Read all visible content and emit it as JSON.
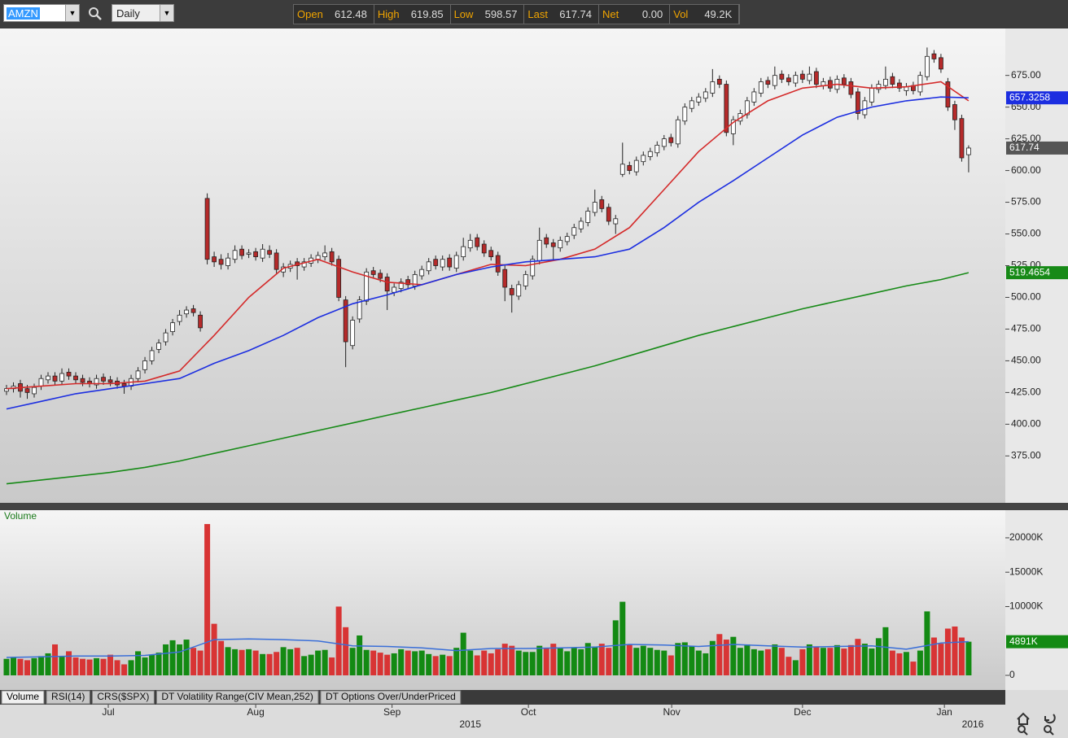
{
  "toolbar": {
    "symbol": "AMZN",
    "interval": "Daily",
    "quote": [
      {
        "label": "Open",
        "value": "612.48"
      },
      {
        "label": "High",
        "value": "619.85"
      },
      {
        "label": "Low",
        "value": "598.57"
      },
      {
        "label": "Last",
        "value": "617.74"
      },
      {
        "label": "Net",
        "value": "0.00"
      },
      {
        "label": "Vol",
        "value": "49.2K"
      }
    ]
  },
  "tabs": [
    "Volume",
    "RSI(14)",
    "CRS($SPX)",
    "DT Volatility Range(CIV Mean,252)",
    "DT Options Over/UnderPriced"
  ],
  "chart_data": [
    {
      "type": "candlestick",
      "up_color": "#ffffff",
      "down_color": "#b52a2a",
      "xlim": [
        -0.94,
        144.3
      ],
      "ylim": [
        338,
        712
      ],
      "yticks": [
        {
          "value": 375,
          "label": "375.00"
        },
        {
          "value": 400,
          "label": "400.00"
        },
        {
          "value": 425,
          "label": "425.00"
        },
        {
          "value": 450,
          "label": "450.00"
        },
        {
          "value": 475,
          "label": "475.00"
        },
        {
          "value": 500,
          "label": "500.00"
        },
        {
          "value": 525,
          "label": "525.00"
        },
        {
          "value": 550,
          "label": "550.00"
        },
        {
          "value": 575,
          "label": "575.00"
        },
        {
          "value": 600,
          "label": "600.00"
        },
        {
          "value": 625,
          "label": "625.00"
        },
        {
          "value": 650,
          "label": "650.00"
        },
        {
          "value": 675,
          "label": "675.00"
        }
      ],
      "xticks": [
        {
          "value": 14.7,
          "label": "Jul"
        },
        {
          "value": 36,
          "label": "Aug"
        },
        {
          "value": 55.7,
          "label": "Sep"
        },
        {
          "value": 75.4,
          "label": "Oct"
        },
        {
          "value": 96.1,
          "label": "Nov"
        },
        {
          "value": 115,
          "label": "Dec"
        },
        {
          "value": 135.5,
          "label": "Jan"
        }
      ],
      "year_ticks": [
        {
          "value": 67,
          "label": "2015"
        },
        {
          "value": 139.6,
          "label": "2016"
        }
      ],
      "open": [
        426,
        428,
        432,
        428,
        424,
        430,
        435,
        438,
        434,
        441,
        438,
        436,
        434,
        431,
        437,
        435,
        434,
        432,
        430,
        436,
        443,
        450,
        459,
        465,
        473,
        481,
        487,
        491,
        486,
        578,
        532,
        530,
        525,
        530,
        538,
        534,
        536,
        531,
        537,
        535,
        520,
        523,
        528,
        524,
        527,
        530,
        532,
        536,
        530,
        498,
        462,
        483,
        497,
        521,
        519,
        516,
        504,
        507,
        514,
        509,
        517,
        521,
        530,
        524,
        531,
        523,
        532,
        539,
        547,
        542,
        537,
        533,
        522,
        507,
        501,
        509,
        517,
        529,
        547,
        543,
        539,
        544,
        549,
        554,
        559,
        567,
        577,
        571,
        558,
        597,
        604,
        599,
        607,
        611,
        614,
        619,
        626,
        621,
        639,
        649,
        654,
        657,
        661,
        672,
        668,
        629,
        639,
        644,
        654,
        661,
        671,
        667,
        676,
        673,
        669,
        676,
        671,
        678,
        667,
        671,
        664,
        673,
        670,
        662,
        644,
        654,
        664,
        667,
        674,
        669,
        663,
        667,
        662,
        674,
        692,
        689,
        670,
        652,
        641,
        612.48
      ],
      "high": [
        431,
        433,
        435,
        431,
        432,
        439,
        441,
        441,
        444,
        444,
        441,
        439,
        437,
        439,
        440,
        438,
        437,
        435,
        439,
        445,
        453,
        461,
        467,
        475,
        483,
        490,
        493,
        494,
        489,
        582,
        536,
        534,
        535,
        541,
        541,
        538,
        539,
        542,
        541,
        538,
        527,
        529,
        531,
        531,
        534,
        536,
        541,
        539,
        533,
        501,
        485,
        501,
        523,
        524,
        522,
        519,
        511,
        515,
        517,
        521,
        525,
        531,
        533,
        533,
        534,
        536,
        547,
        550,
        550,
        545,
        540,
        536,
        525,
        510,
        513,
        521,
        533,
        555,
        550,
        546,
        548,
        551,
        558,
        563,
        571,
        585,
        580,
        574,
        565,
        622,
        607,
        611,
        615,
        618,
        623,
        628,
        629,
        643,
        653,
        658,
        661,
        665,
        680,
        675,
        671,
        643,
        648,
        658,
        665,
        673,
        674,
        682,
        679,
        676,
        678,
        679,
        682,
        681,
        673,
        674,
        675,
        676,
        673,
        665,
        658,
        668,
        671,
        682,
        677,
        672,
        669,
        670,
        678,
        697,
        695,
        692,
        673,
        655,
        644,
        619.85
      ],
      "low": [
        423,
        425,
        421,
        420,
        421,
        427,
        432,
        431,
        431,
        435,
        432,
        430,
        429,
        428,
        431,
        430,
        428,
        424,
        427,
        433,
        440,
        447,
        456,
        462,
        470,
        478,
        484,
        485,
        473,
        526,
        524,
        522,
        522,
        527,
        530,
        531,
        529,
        528,
        531,
        519,
        516,
        520,
        514,
        521,
        524,
        527,
        529,
        525,
        497,
        445,
        459,
        480,
        494,
        515,
        512,
        490,
        501,
        504,
        507,
        506,
        514,
        518,
        522,
        521,
        521,
        520,
        529,
        536,
        537,
        532,
        529,
        517,
        497,
        488,
        498,
        506,
        514,
        526,
        539,
        530,
        536,
        541,
        546,
        551,
        556,
        564,
        567,
        557,
        550,
        595,
        597,
        596,
        604,
        608,
        611,
        616,
        619,
        618,
        636,
        646,
        651,
        654,
        658,
        665,
        627,
        620,
        636,
        641,
        651,
        658,
        665,
        664,
        669,
        667,
        666,
        669,
        668,
        665,
        664,
        662,
        661,
        665,
        657,
        640,
        641,
        651,
        661,
        664,
        665,
        662,
        659,
        660,
        659,
        671,
        685,
        677,
        647,
        632,
        607,
        598.57
      ],
      "close": [
        428,
        430,
        426,
        425,
        429,
        436,
        438,
        434,
        440,
        438,
        435,
        433,
        432,
        436,
        434,
        433,
        431,
        430,
        436,
        442,
        450,
        458,
        464,
        472,
        480,
        486,
        490,
        488,
        476,
        530,
        528,
        526,
        531,
        537,
        533,
        535,
        532,
        538,
        534,
        522,
        524,
        526,
        525,
        528,
        531,
        533,
        535,
        528,
        500,
        465,
        482,
        498,
        520,
        518,
        515,
        505,
        508,
        512,
        510,
        518,
        522,
        528,
        525,
        530,
        524,
        533,
        540,
        545,
        540,
        535,
        532,
        520,
        508,
        502,
        510,
        518,
        530,
        545,
        542,
        540,
        545,
        548,
        555,
        560,
        568,
        575,
        570,
        560,
        562,
        605,
        600,
        608,
        612,
        615,
        620,
        625,
        622,
        640,
        650,
        655,
        658,
        662,
        670,
        668,
        630,
        640,
        645,
        655,
        662,
        670,
        668,
        675,
        672,
        670,
        675,
        672,
        676,
        668,
        670,
        665,
        672,
        668,
        660,
        645,
        655,
        665,
        668,
        672,
        668,
        665,
        666,
        663,
        675,
        690,
        688,
        680,
        650,
        640,
        610,
        617.74
      ],
      "series": [
        {
          "color": "#d42a2a",
          "x": [
            0,
            5,
            10,
            15,
            20,
            25,
            30,
            35,
            40,
            45,
            50,
            55,
            60,
            65,
            70,
            75,
            80,
            85,
            90,
            95,
            100,
            105,
            110,
            115,
            120,
            125,
            130,
            135,
            139
          ],
          "values": [
            428,
            430,
            432,
            432,
            434,
            442,
            470,
            500,
            523,
            530,
            520,
            512,
            510,
            518,
            526,
            525,
            530,
            538,
            555,
            585,
            615,
            638,
            655,
            665,
            668,
            665,
            666,
            670,
            655
          ]
        },
        {
          "color": "#1c2ee0",
          "x": [
            0,
            5,
            10,
            15,
            20,
            25,
            30,
            35,
            40,
            45,
            50,
            55,
            60,
            65,
            70,
            75,
            80,
            85,
            90,
            95,
            100,
            105,
            110,
            115,
            120,
            125,
            130,
            135,
            139
          ],
          "values": [
            412,
            418,
            424,
            428,
            432,
            436,
            448,
            458,
            470,
            484,
            495,
            502,
            510,
            518,
            524,
            528,
            530,
            532,
            538,
            555,
            575,
            592,
            610,
            628,
            642,
            650,
            655,
            658,
            657.3258
          ]
        },
        {
          "color": "#178a17",
          "x": [
            0,
            5,
            10,
            15,
            20,
            25,
            30,
            35,
            40,
            45,
            50,
            55,
            60,
            65,
            70,
            75,
            80,
            85,
            90,
            95,
            100,
            105,
            110,
            115,
            120,
            125,
            130,
            135,
            139
          ],
          "values": [
            353,
            356,
            359,
            362,
            366,
            371,
            377,
            383,
            389,
            395,
            401,
            407,
            413,
            419,
            425,
            432,
            439,
            446,
            454,
            462,
            470,
            477,
            484,
            491,
            497,
            503,
            509,
            514,
            519.4654
          ]
        }
      ]
    },
    {
      "type": "bar",
      "title": "Volume",
      "up_color": "#138a13",
      "down_color": "#d83434",
      "ylim": [
        0,
        23900
      ],
      "yticks": [
        0,
        {
          "value": 10000,
          "label": "10000K"
        },
        {
          "value": 15000,
          "label": "15000K"
        },
        {
          "value": 20000,
          "label": "20000K"
        }
      ],
      "values": [
        2400,
        2600,
        2400,
        2200,
        2500,
        2800,
        3200,
        4500,
        2800,
        3500,
        2600,
        2400,
        2300,
        2500,
        2400,
        3000,
        2200,
        1600,
        2200,
        3500,
        2600,
        3000,
        3300,
        4500,
        5100,
        4500,
        5200,
        4000,
        3600,
        22000,
        7500,
        5000,
        4100,
        3800,
        3700,
        3800,
        3600,
        3100,
        3100,
        3400,
        4100,
        3800,
        4000,
        2800,
        3000,
        3600,
        3700,
        2600,
        10000,
        7000,
        4000,
        5800,
        3700,
        3600,
        3300,
        3000,
        3200,
        3800,
        3600,
        3500,
        3600,
        3100,
        2800,
        3000,
        2800,
        4000,
        6200,
        3600,
        2900,
        3600,
        3200,
        3800,
        4600,
        4300,
        3600,
        3400,
        3400,
        4300,
        4000,
        4600,
        4000,
        3500,
        4000,
        3800,
        4700,
        4200,
        4600,
        4000,
        8000,
        10700,
        4500,
        4000,
        4300,
        4000,
        3700,
        3600,
        2900,
        4700,
        4800,
        4200,
        3600,
        3200,
        5000,
        6000,
        5200,
        5600,
        4000,
        4500,
        3800,
        3600,
        3800,
        4500,
        4000,
        2700,
        2200,
        3800,
        4500,
        4100,
        4000,
        4000,
        4400,
        3900,
        4400,
        5300,
        4600,
        3900,
        5400,
        7000,
        3600,
        3200,
        3400,
        2000,
        3600,
        9300,
        5500,
        4600,
        6800,
        7100,
        5500,
        4891
      ],
      "last_value_label": "4891K",
      "series": [
        {
          "color": "#3a6fd8",
          "x": [
            0,
            5,
            10,
            15,
            20,
            25,
            30,
            35,
            40,
            45,
            50,
            55,
            60,
            65,
            70,
            75,
            80,
            85,
            90,
            95,
            100,
            105,
            110,
            115,
            120,
            125,
            130,
            135,
            139
          ],
          "values": [
            2600,
            2700,
            2800,
            2800,
            2900,
            3400,
            5200,
            5300,
            5200,
            5000,
            4300,
            4200,
            4000,
            3600,
            3900,
            3900,
            4000,
            4100,
            4500,
            4400,
            4200,
            4500,
            4300,
            4100,
            4200,
            4300,
            3800,
            4700,
            4900
          ]
        }
      ]
    }
  ]
}
